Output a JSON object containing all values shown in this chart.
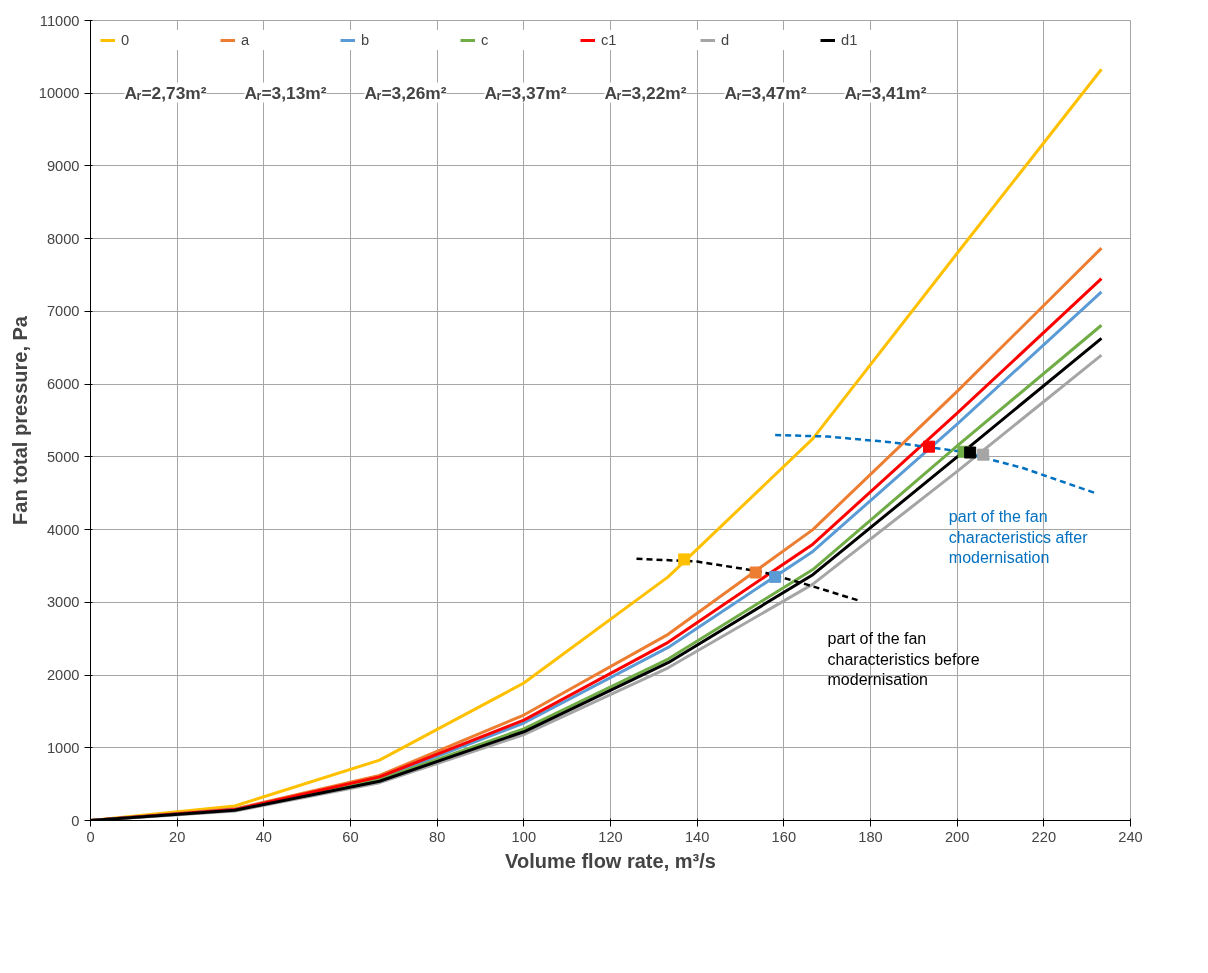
{
  "chart_data": {
    "type": "line",
    "xlabel": "Volume flow rate, m³/s",
    "ylabel": "Fan total pressure, Pa",
    "xlim": [
      0,
      240
    ],
    "xticks": [
      0,
      20,
      40,
      60,
      80,
      100,
      120,
      140,
      160,
      180,
      200,
      220,
      240
    ],
    "ylim": [
      0,
      11000
    ],
    "yticks": [
      0,
      1000,
      2000,
      3000,
      4000,
      5000,
      6000,
      7000,
      8000,
      9000,
      10000,
      11000
    ],
    "grid": true,
    "legend": "top",
    "line_style": "solid",
    "series": [
      {
        "name": "0",
        "color": "#ffc000",
        "x": [
          0,
          33.3,
          66.7,
          100,
          133.3,
          166.7,
          200,
          233.3
        ],
        "values": [
          0,
          200,
          830,
          1890,
          3350,
          5250,
          7800,
          10330
        ]
      },
      {
        "name": "a",
        "color": "#ed7d31",
        "x": [
          0,
          33.3,
          66.7,
          100,
          133.3,
          166.7,
          200,
          233.3
        ],
        "values": [
          0,
          160,
          620,
          1450,
          2560,
          4000,
          5900,
          7870
        ]
      },
      {
        "name": "b",
        "color": "#5b9bd5",
        "x": [
          0,
          33.3,
          66.7,
          100,
          133.3,
          166.7,
          200,
          233.3
        ],
        "values": [
          0,
          150,
          580,
          1340,
          2380,
          3700,
          5450,
          7270
        ]
      },
      {
        "name": "c",
        "color": "#70ad47",
        "x": [
          0,
          33.3,
          66.7,
          100,
          133.3,
          166.7,
          200,
          233.3
        ],
        "values": [
          0,
          140,
          560,
          1260,
          2220,
          3450,
          5150,
          6810
        ]
      },
      {
        "name": "c1",
        "color": "#ff0000",
        "x": [
          0,
          33.3,
          66.7,
          100,
          133.3,
          166.7,
          200,
          233.3
        ],
        "values": [
          0,
          150,
          600,
          1380,
          2450,
          3800,
          5600,
          7450
        ]
      },
      {
        "name": "d",
        "color": "#a5a5a5",
        "x": [
          0,
          33.3,
          66.7,
          100,
          133.3,
          166.7,
          200,
          233.3
        ],
        "values": [
          0,
          130,
          520,
          1180,
          2100,
          3250,
          4800,
          6400
        ]
      },
      {
        "name": "d1",
        "color": "#000000",
        "x": [
          0,
          33.3,
          66.7,
          100,
          133.3,
          166.7,
          200,
          233.3
        ],
        "values": [
          0,
          140,
          540,
          1220,
          2170,
          3380,
          5000,
          6630
        ]
      },
      {
        "type": "line",
        "line_style": "dashed",
        "color": "#000000",
        "x": [
          126,
          140,
          155,
          165,
          177
        ],
        "values": [
          3600,
          3560,
          3420,
          3250,
          3030
        ]
      },
      {
        "type": "line",
        "line_style": "dashed",
        "color": "#0070c0",
        "x": [
          158,
          170,
          185,
          200,
          215,
          232
        ],
        "values": [
          5300,
          5280,
          5200,
          5080,
          4850,
          4500
        ]
      },
      {
        "type": "scatter",
        "marker": "square",
        "color": "#ffc000",
        "x": [
          137
        ],
        "values": [
          3590
        ]
      },
      {
        "type": "scatter",
        "marker": "square",
        "color": "#ed7d31",
        "x": [
          153.5
        ],
        "values": [
          3410
        ]
      },
      {
        "type": "scatter",
        "marker": "square",
        "color": "#5b9bd5",
        "x": [
          158
        ],
        "values": [
          3350
        ]
      },
      {
        "type": "scatter",
        "marker": "square",
        "color": "#ff0000",
        "x": [
          193.5
        ],
        "values": [
          5140
        ]
      },
      {
        "type": "scatter",
        "marker": "square",
        "color": "#70ad47",
        "x": [
          201.5
        ],
        "values": [
          5070
        ]
      },
      {
        "type": "scatter",
        "marker": "square",
        "color": "#a5a5a5",
        "x": [
          206
        ],
        "values": [
          5030
        ]
      },
      {
        "type": "scatter",
        "marker": "square",
        "color": "#000000",
        "x": [
          203
        ],
        "values": [
          5060
        ]
      }
    ],
    "annotations": [
      "Aᵣ=2,73m²",
      "Aᵣ=3,13m²",
      "Aᵣ=3,26m²",
      "Aᵣ=3,37m²",
      "Aᵣ=3,22m²",
      "Aᵣ=3,47m²",
      "Aᵣ=3,41m²",
      "part of the fan characteristics after modernisation",
      "part of the fan characteristics before modernisation"
    ]
  }
}
